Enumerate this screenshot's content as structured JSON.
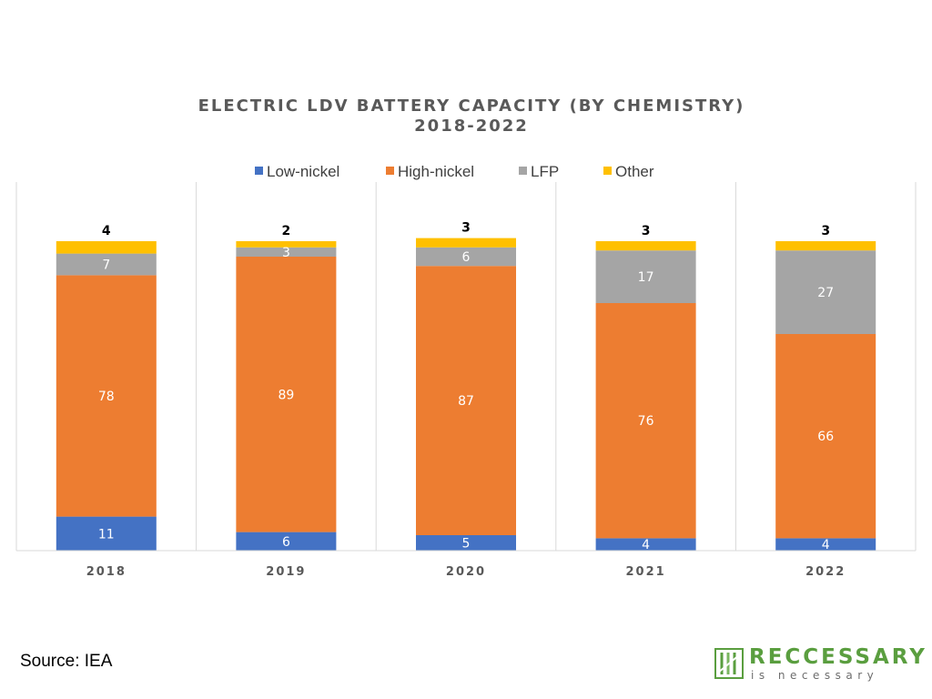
{
  "chart_data": {
    "type": "bar",
    "stacked": true,
    "title": "ELECTRIC LDV BATTERY CAPACITY (BY CHEMISTRY)",
    "subtitle": "2018-2022",
    "categories": [
      "2018",
      "2019",
      "2020",
      "2021",
      "2022"
    ],
    "series": [
      {
        "name": "Low-nickel",
        "color": "#4472c4",
        "values": [
          11,
          6,
          5,
          4,
          4
        ]
      },
      {
        "name": "High-nickel",
        "color": "#ed7d31",
        "values": [
          78,
          89,
          87,
          76,
          66
        ]
      },
      {
        "name": "LFP",
        "color": "#a5a5a5",
        "values": [
          7,
          3,
          6,
          17,
          27
        ]
      },
      {
        "name": "Other",
        "color": "#ffc000",
        "values": [
          4,
          2,
          3,
          3,
          3
        ]
      }
    ],
    "ylim": [
      0,
      100
    ],
    "legend_position": "top",
    "grid": false
  },
  "footer": {
    "source": "Source: IEA"
  },
  "logo": {
    "name": "RECCESSARY",
    "tagline": "is necessary"
  }
}
